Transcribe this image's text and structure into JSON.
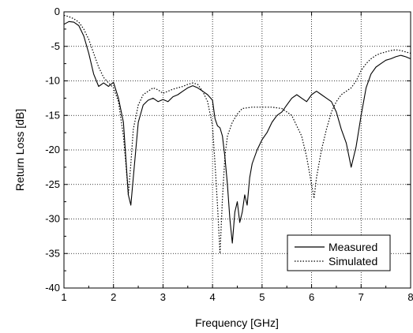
{
  "chart_data": {
    "type": "line",
    "title": "",
    "xlabel": "Frequency [GHz]",
    "ylabel": "Return Loss [dB]",
    "xlim": [
      1,
      8
    ],
    "ylim": [
      -40,
      0
    ],
    "x_ticks": [
      "1",
      "2",
      "3",
      "4",
      "5",
      "6",
      "7",
      "8"
    ],
    "y_ticks": [
      "0",
      "-5",
      "-10",
      "-15",
      "-20",
      "-25",
      "-30",
      "-35",
      "-40"
    ],
    "grid": true,
    "grid_style": "dotted",
    "legend_position": "bottom-right",
    "series": [
      {
        "name": "Measured",
        "line_style": "solid",
        "color": "#000000",
        "points": [
          [
            1.0,
            -1.8
          ],
          [
            1.1,
            -1.4
          ],
          [
            1.2,
            -1.5
          ],
          [
            1.3,
            -2.0
          ],
          [
            1.4,
            -3.5
          ],
          [
            1.5,
            -6.0
          ],
          [
            1.6,
            -9.0
          ],
          [
            1.7,
            -10.8
          ],
          [
            1.8,
            -10.3
          ],
          [
            1.9,
            -10.8
          ],
          [
            2.0,
            -10.2
          ],
          [
            2.1,
            -12.5
          ],
          [
            2.2,
            -16.0
          ],
          [
            2.3,
            -26.5
          ],
          [
            2.35,
            -28.0
          ],
          [
            2.4,
            -24.0
          ],
          [
            2.5,
            -16.0
          ],
          [
            2.6,
            -13.5
          ],
          [
            2.7,
            -12.8
          ],
          [
            2.8,
            -12.5
          ],
          [
            2.9,
            -13.0
          ],
          [
            3.0,
            -12.7
          ],
          [
            3.1,
            -13.0
          ],
          [
            3.2,
            -12.3
          ],
          [
            3.3,
            -12.0
          ],
          [
            3.4,
            -11.5
          ],
          [
            3.5,
            -11.0
          ],
          [
            3.6,
            -10.7
          ],
          [
            3.7,
            -11.0
          ],
          [
            3.8,
            -11.5
          ],
          [
            3.9,
            -12.0
          ],
          [
            4.0,
            -12.8
          ],
          [
            4.05,
            -15.5
          ],
          [
            4.1,
            -16.5
          ],
          [
            4.15,
            -16.8
          ],
          [
            4.2,
            -18.0
          ],
          [
            4.25,
            -21.0
          ],
          [
            4.3,
            -25.0
          ],
          [
            4.35,
            -30.0
          ],
          [
            4.4,
            -33.5
          ],
          [
            4.45,
            -29.0
          ],
          [
            4.5,
            -27.5
          ],
          [
            4.55,
            -30.5
          ],
          [
            4.6,
            -29.0
          ],
          [
            4.65,
            -26.5
          ],
          [
            4.7,
            -28.0
          ],
          [
            4.75,
            -24.0
          ],
          [
            4.8,
            -22.0
          ],
          [
            4.9,
            -20.0
          ],
          [
            5.0,
            -18.5
          ],
          [
            5.1,
            -17.5
          ],
          [
            5.2,
            -16.0
          ],
          [
            5.3,
            -15.0
          ],
          [
            5.4,
            -14.5
          ],
          [
            5.5,
            -13.5
          ],
          [
            5.6,
            -12.5
          ],
          [
            5.7,
            -12.0
          ],
          [
            5.8,
            -12.5
          ],
          [
            5.9,
            -13.0
          ],
          [
            6.0,
            -12.0
          ],
          [
            6.1,
            -11.5
          ],
          [
            6.2,
            -12.0
          ],
          [
            6.3,
            -12.5
          ],
          [
            6.4,
            -13.0
          ],
          [
            6.5,
            -14.5
          ],
          [
            6.6,
            -17.0
          ],
          [
            6.7,
            -19.0
          ],
          [
            6.8,
            -22.5
          ],
          [
            6.9,
            -19.5
          ],
          [
            7.0,
            -15.0
          ],
          [
            7.1,
            -11.0
          ],
          [
            7.2,
            -9.0
          ],
          [
            7.3,
            -8.0
          ],
          [
            7.4,
            -7.5
          ],
          [
            7.5,
            -7.0
          ],
          [
            7.6,
            -6.8
          ],
          [
            7.7,
            -6.5
          ],
          [
            7.8,
            -6.3
          ],
          [
            7.9,
            -6.5
          ],
          [
            8.0,
            -6.8
          ]
        ]
      },
      {
        "name": "Simulated",
        "line_style": "dotted",
        "color": "#000000",
        "points": [
          [
            1.0,
            -0.5
          ],
          [
            1.1,
            -0.7
          ],
          [
            1.2,
            -1.0
          ],
          [
            1.3,
            -1.5
          ],
          [
            1.4,
            -2.5
          ],
          [
            1.5,
            -4.0
          ],
          [
            1.6,
            -6.0
          ],
          [
            1.7,
            -8.0
          ],
          [
            1.8,
            -9.5
          ],
          [
            1.9,
            -10.3
          ],
          [
            2.0,
            -11.0
          ],
          [
            2.1,
            -13.0
          ],
          [
            2.2,
            -18.0
          ],
          [
            2.25,
            -22.0
          ],
          [
            2.3,
            -26.5
          ],
          [
            2.35,
            -22.0
          ],
          [
            2.4,
            -17.0
          ],
          [
            2.5,
            -13.5
          ],
          [
            2.6,
            -12.0
          ],
          [
            2.7,
            -11.5
          ],
          [
            2.8,
            -11.0
          ],
          [
            2.9,
            -11.3
          ],
          [
            3.0,
            -11.8
          ],
          [
            3.1,
            -11.5
          ],
          [
            3.2,
            -11.2
          ],
          [
            3.3,
            -11.0
          ],
          [
            3.4,
            -10.8
          ],
          [
            3.5,
            -10.5
          ],
          [
            3.6,
            -10.3
          ],
          [
            3.7,
            -10.5
          ],
          [
            3.8,
            -11.5
          ],
          [
            3.9,
            -13.0
          ],
          [
            4.0,
            -16.5
          ],
          [
            4.05,
            -22.0
          ],
          [
            4.1,
            -28.0
          ],
          [
            4.15,
            -35.0
          ],
          [
            4.2,
            -27.0
          ],
          [
            4.25,
            -21.0
          ],
          [
            4.3,
            -18.0
          ],
          [
            4.4,
            -16.0
          ],
          [
            4.5,
            -14.8
          ],
          [
            4.6,
            -14.0
          ],
          [
            4.8,
            -13.8
          ],
          [
            5.0,
            -13.8
          ],
          [
            5.2,
            -13.8
          ],
          [
            5.4,
            -14.0
          ],
          [
            5.6,
            -15.0
          ],
          [
            5.8,
            -18.0
          ],
          [
            5.9,
            -21.0
          ],
          [
            6.0,
            -25.0
          ],
          [
            6.05,
            -27.0
          ],
          [
            6.1,
            -24.0
          ],
          [
            6.2,
            -20.0
          ],
          [
            6.3,
            -17.0
          ],
          [
            6.4,
            -14.5
          ],
          [
            6.5,
            -13.0
          ],
          [
            6.6,
            -12.0
          ],
          [
            6.7,
            -11.5
          ],
          [
            6.8,
            -11.0
          ],
          [
            6.9,
            -10.0
          ],
          [
            7.0,
            -8.5
          ],
          [
            7.1,
            -7.5
          ],
          [
            7.2,
            -6.8
          ],
          [
            7.3,
            -6.3
          ],
          [
            7.4,
            -6.0
          ],
          [
            7.5,
            -5.8
          ],
          [
            7.6,
            -5.6
          ],
          [
            7.7,
            -5.5
          ],
          [
            7.8,
            -5.6
          ],
          [
            7.9,
            -5.8
          ],
          [
            8.0,
            -6.0
          ]
        ]
      }
    ]
  }
}
